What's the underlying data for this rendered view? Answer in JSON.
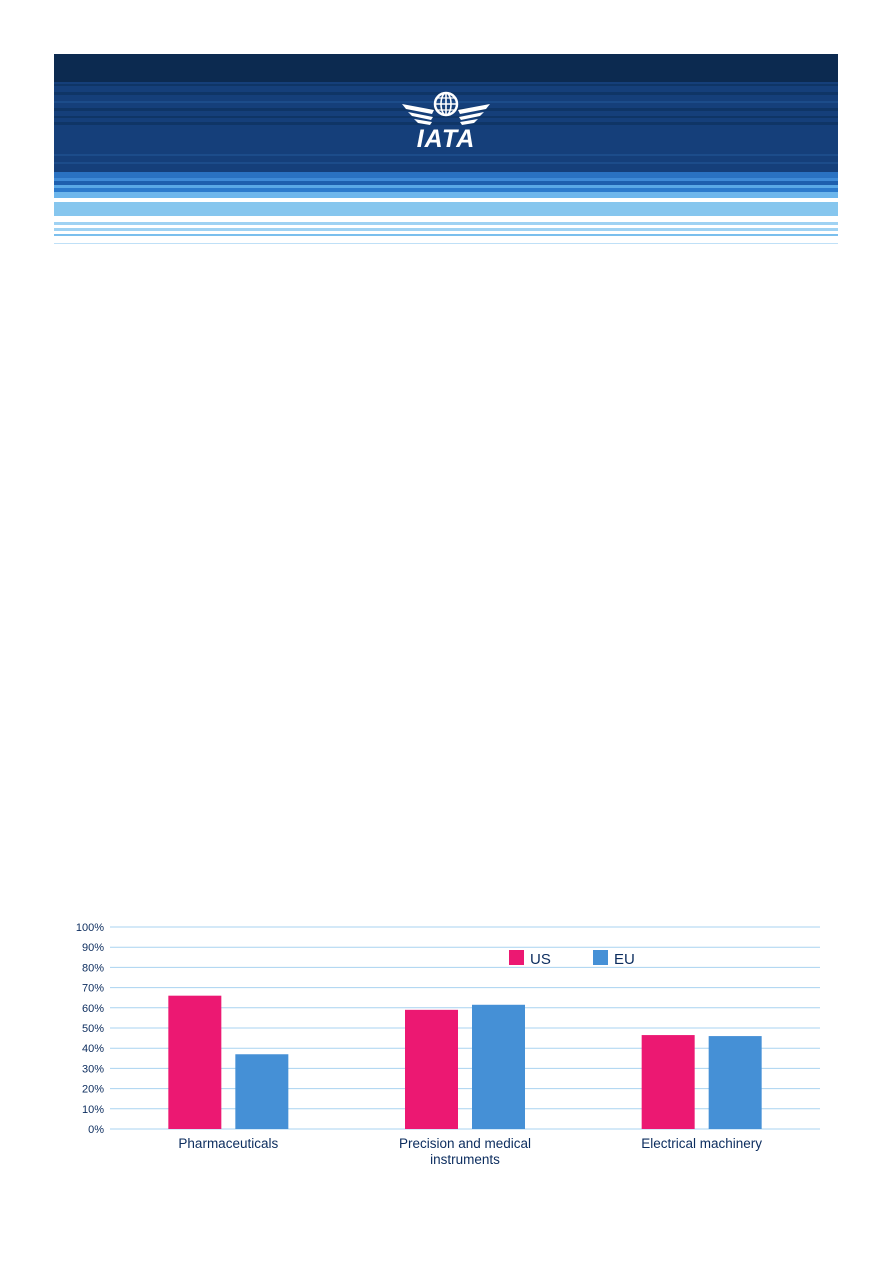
{
  "header": {
    "logo_text": "IATA",
    "colors": {
      "dark": "#0d2d55",
      "mid": "#153f7a",
      "light": "#86c6ee",
      "accent": "#3d8fd9"
    }
  },
  "chart_data": {
    "type": "bar",
    "categories": [
      "Pharmaceuticals",
      "Precision and medical instruments",
      "Electrical machinery"
    ],
    "category_lines": [
      [
        "Pharmaceuticals"
      ],
      [
        "Precision and medical",
        "instruments"
      ],
      [
        "Electrical machinery"
      ]
    ],
    "series": [
      {
        "name": "US",
        "values": [
          0.66,
          0.59,
          0.465
        ],
        "color": "#ec1872"
      },
      {
        "name": "EU",
        "values": [
          0.37,
          0.615,
          0.46
        ],
        "color": "#4590d6"
      }
    ],
    "y_ticks": [
      "0%",
      "10%",
      "20%",
      "30%",
      "40%",
      "50%",
      "60%",
      "70%",
      "80%",
      "90%",
      "100%"
    ],
    "ylim": [
      0,
      1
    ],
    "grid": true,
    "legend_position": "top-right",
    "title": "",
    "xlabel": "",
    "ylabel": ""
  }
}
